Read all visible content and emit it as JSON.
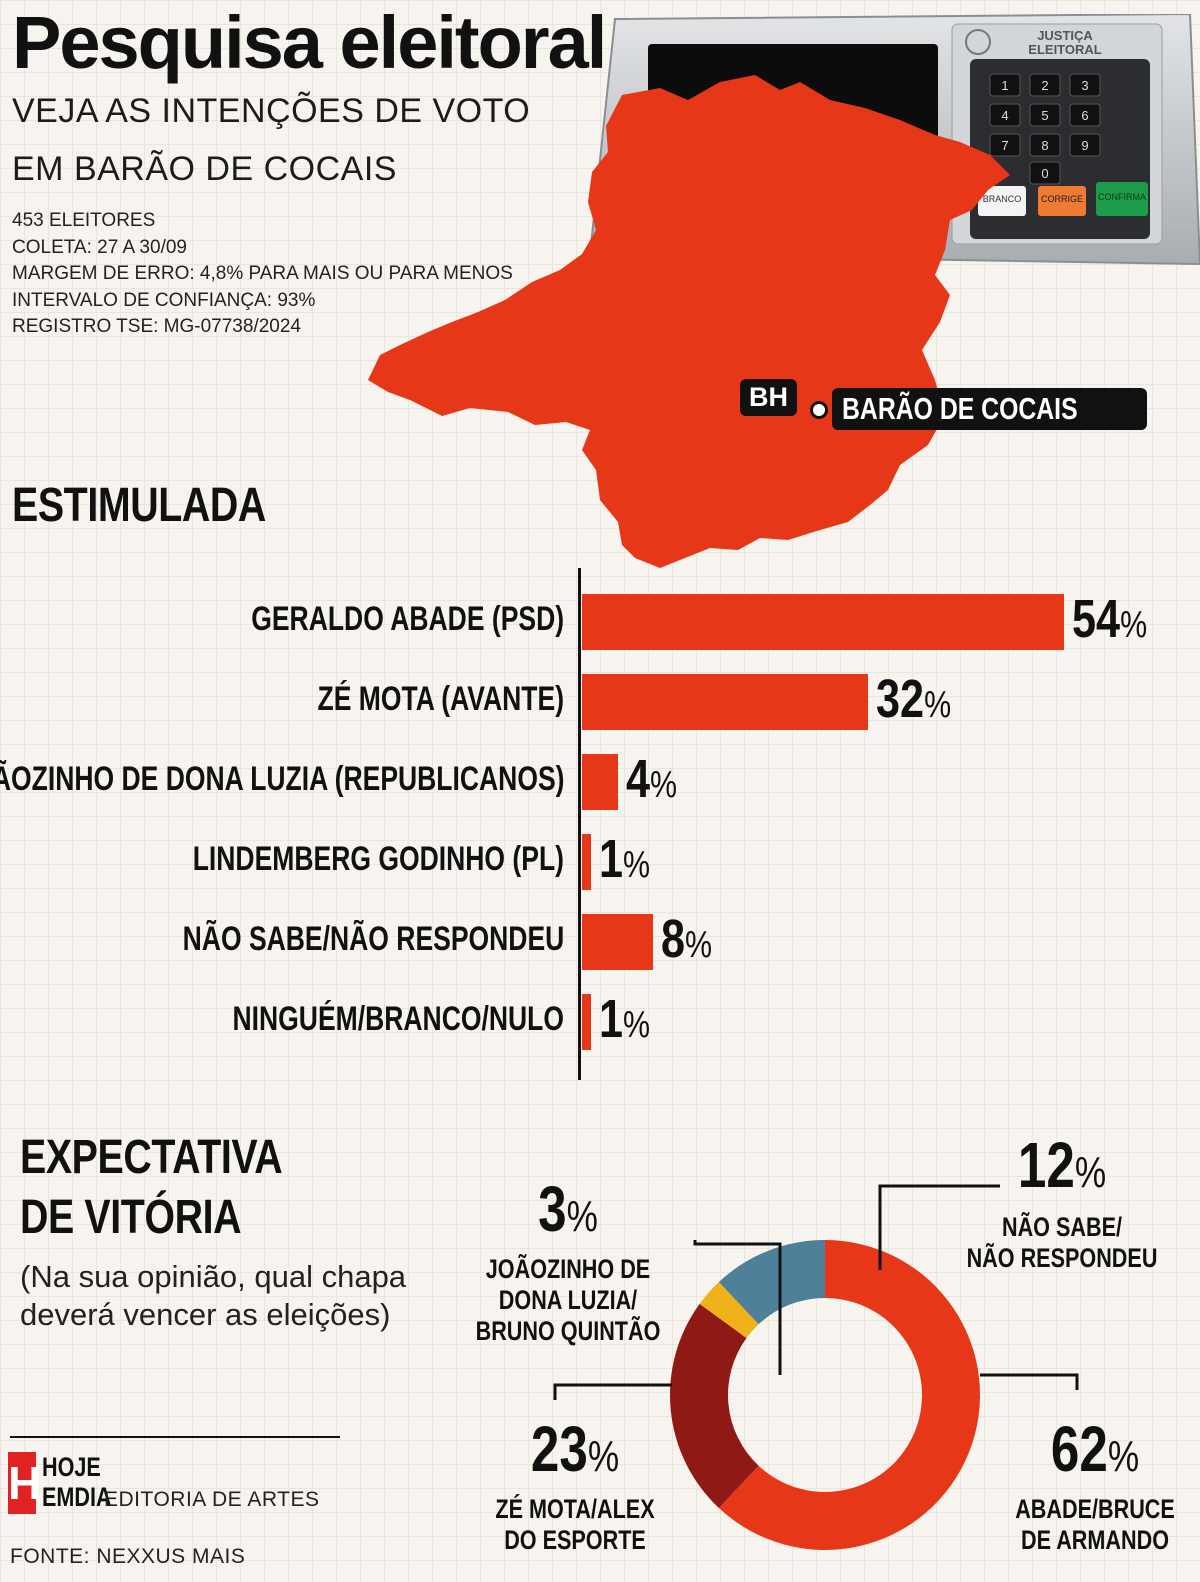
{
  "header": {
    "title": "Pesquisa eleitoral",
    "subtitle_line1": "VEJA AS INTENÇÕES DE VOTO",
    "subtitle_line2": "EM BARÃO DE COCAIS",
    "meta": [
      "453 ELEITORES",
      "COLETA: 27 A 30/09",
      "MARGEM DE ERRO: 4,8% PARA MAIS OU PARA MENOS",
      "INTERVALO DE CONFIANÇA: 93%",
      "REGISTRO TSE: MG-07738/2024"
    ]
  },
  "urna": {
    "label_line1": "JUSTIÇA",
    "label_line2": "ELEITORAL",
    "keys": [
      "1",
      "2",
      "3",
      "4",
      "5",
      "6",
      "7",
      "8",
      "9",
      "0"
    ],
    "btn_branco": "BRANCO",
    "btn_corrige": "CORRIGE",
    "btn_confirma": "CONFIRMA"
  },
  "map": {
    "color": "#e63719",
    "tag_bh": "BH",
    "tag_city": "BARÃO DE COCAIS"
  },
  "colors": {
    "accent": "#e63719",
    "dark_red": "#8f1914",
    "yellow": "#f0b21b",
    "blue": "#4f8099"
  },
  "chart_data": [
    {
      "type": "bar",
      "title": "ESTIMULADA",
      "orientation": "horizontal",
      "categories": [
        "GERALDO ABADE (PSD)",
        "ZÉ MOTA (AVANTE)",
        "JOÃOZINHO DE DONA LUZIA (REPUBLICANOS)",
        "LINDEMBERG GODINHO (PL)",
        "NÃO SABE/NÃO RESPONDEU",
        "NINGUÉM/BRANCO/NULO"
      ],
      "values": [
        54,
        32,
        4,
        1,
        8,
        1
      ],
      "unit": "%",
      "xlim": [
        0,
        54
      ]
    },
    {
      "type": "pie",
      "variant": "donut",
      "title_line1": "EXPECTATIVA",
      "title_line2": "DE VITÓRIA",
      "question_line1": "(Na sua opinião, qual chapa",
      "question_line2": "deverá vencer as eleições)",
      "slices": [
        {
          "label_lines": [
            "ABADE/BRUCE",
            "DE ARMANDO"
          ],
          "value": 62,
          "color": "#e63719"
        },
        {
          "label_lines": [
            "ZÉ MOTA/ALEX",
            "DO ESPORTE"
          ],
          "value": 23,
          "color": "#8f1914"
        },
        {
          "label_lines": [
            "JOÃOZINHO DE",
            "DONA LUZIA/",
            "BRUNO QUINTÃO"
          ],
          "value": 3,
          "color": "#f0b21b"
        },
        {
          "label_lines": [
            "NÃO SABE/",
            "NÃO RESPONDEU"
          ],
          "value": 12,
          "color": "#4f8099"
        }
      ],
      "unit": "%"
    }
  ],
  "footer": {
    "logo_mark": "H",
    "logo_line1": "HOJE",
    "logo_line2": "EMDIA",
    "editoria": "EDITORIA DE ARTES",
    "fonte": "FONTE: NEXXUS MAIS"
  }
}
